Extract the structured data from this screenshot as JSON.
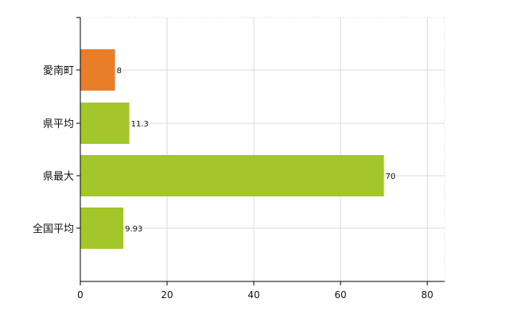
{
  "chart_data": {
    "type": "bar",
    "orientation": "horizontal",
    "title": "",
    "xlabel": "",
    "ylabel": "",
    "categories": [
      "愛南町",
      "県平均",
      "県最大",
      "全国平均"
    ],
    "values": [
      8,
      11.3,
      70,
      9.93
    ],
    "value_labels": [
      "8",
      "11.3",
      "70",
      "9.93"
    ],
    "bar_colors": [
      "#E87D2A",
      "#A3C72B",
      "#A3C72B",
      "#A3C72B"
    ],
    "xlim": [
      0,
      84
    ],
    "xticks": [
      0,
      20,
      40,
      60,
      80
    ],
    "xtick_labels": [
      "0",
      "20",
      "40",
      "60",
      "80"
    ],
    "grid": true,
    "legend": "none"
  },
  "colors": {
    "grid": "#d9d9d9",
    "axis": "#000000",
    "text": "#111111"
  }
}
